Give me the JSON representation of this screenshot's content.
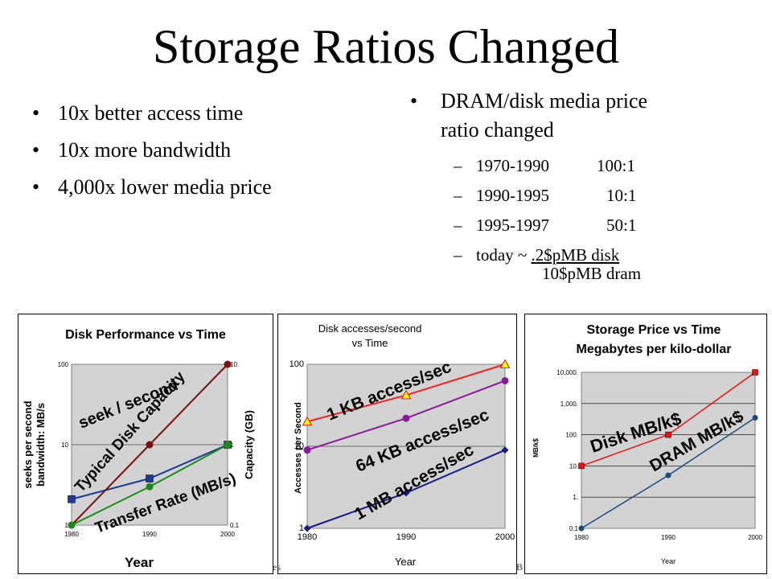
{
  "slide": {
    "title": "Storage Ratios Changed",
    "left_bullets": [
      "10x better access time",
      "10x more bandwidth",
      "4,000x lower media price"
    ],
    "right_bullet": [
      "DRAM/disk media price",
      "ratio changed"
    ],
    "ratio_rows": [
      {
        "years": "1970-1990",
        "ratio": "100:1"
      },
      {
        "years": "1990-1995",
        "ratio": "10:1"
      },
      {
        "years": "1995-1997",
        "ratio": "50:1"
      }
    ],
    "today_prefix": "today ~",
    "today_disk": ".2$pMB disk",
    "today_dram": "10$pMB dram",
    "bullet_glyph": "•",
    "dash_glyph": "–",
    "footer_left": "es",
    "footer_right": "B"
  },
  "chart_data": [
    {
      "type": "line",
      "title": "Disk Performance vs Time",
      "xlabel": "Year",
      "ylabel": "seeks per second bandwidth: MB/s",
      "y2label": "Capacity (GB)",
      "x": [
        1980,
        1990,
        2000
      ],
      "x_ticks": [
        "1980",
        "1990",
        "2000"
      ],
      "yscale": "log",
      "ylim": [
        1,
        100
      ],
      "y_ticks": [
        "100",
        "10",
        "1"
      ],
      "y2lim": [
        0.1,
        10
      ],
      "y2_ticks": [
        "10.",
        "1",
        "0.1"
      ],
      "series": [
        {
          "name": "seek / second",
          "values": [
            2.1,
            3.8,
            10
          ],
          "color": "#1f3a93",
          "marker": "square",
          "axis": "left"
        },
        {
          "name": "Typical Disk Capacity",
          "values": [
            0.1,
            1,
            10
          ],
          "color": "#7a1010",
          "marker": "circle",
          "axis": "right"
        },
        {
          "name": "Transfer Rate (MB/s)",
          "values": [
            1,
            3,
            10
          ],
          "color": "#1a8a1a",
          "marker": "circle",
          "axis": "left"
        }
      ],
      "grid": true,
      "plot_background": "#d2d2d2"
    },
    {
      "type": "line",
      "title": "Disk accesses/second vs Time",
      "title_lines": [
        "Disk accesses/second",
        "vs Time"
      ],
      "xlabel": "Year",
      "ylabel": "Accesses per Second",
      "x": [
        1980,
        1990,
        2000
      ],
      "x_ticks": [
        "1980",
        "1990",
        "2000"
      ],
      "yscale": "log",
      "ylim": [
        1,
        100
      ],
      "y_ticks": [
        "100",
        "10",
        "1"
      ],
      "series": [
        {
          "name": "1 KB access/sec",
          "values": [
            20,
            42,
            100
          ],
          "color": "#ee2222",
          "marker": "triangle"
        },
        {
          "name": "64 KB access/sec",
          "values": [
            9,
            22,
            63
          ],
          "color": "#8a1a9a",
          "marker": "circle"
        },
        {
          "name": "1 MB access/sec",
          "values": [
            1,
            2.7,
            9
          ],
          "color": "#1a1a8a",
          "marker": "diamond"
        }
      ],
      "grid": true,
      "plot_background": "#d2d2d2"
    },
    {
      "type": "line",
      "title": "Storage Price vs Time Megabytes per kilo-dollar",
      "title_lines": [
        "Storage Price vs Time",
        "Megabytes per kilo-dollar"
      ],
      "xlabel": "Year",
      "ylabel": "MB/k$",
      "x": [
        1980,
        1990,
        2000
      ],
      "x_ticks": [
        "1980",
        "1990",
        "2000"
      ],
      "yscale": "log",
      "ylim": [
        0.1,
        10000
      ],
      "y_ticks": [
        "10,000.",
        "1,000.",
        "100.",
        "10.",
        "1.",
        "0.1"
      ],
      "series": [
        {
          "name": "Disk MB/k$",
          "values": [
            10,
            100,
            10000
          ],
          "color": "#ee1111",
          "marker": "square"
        },
        {
          "name": "DRAM MB/k$",
          "values": [
            0.1,
            5,
            350
          ],
          "color": "#1a4a7a",
          "marker": "circle"
        }
      ],
      "grid": true,
      "plot_background": "#d2d2d2"
    }
  ]
}
